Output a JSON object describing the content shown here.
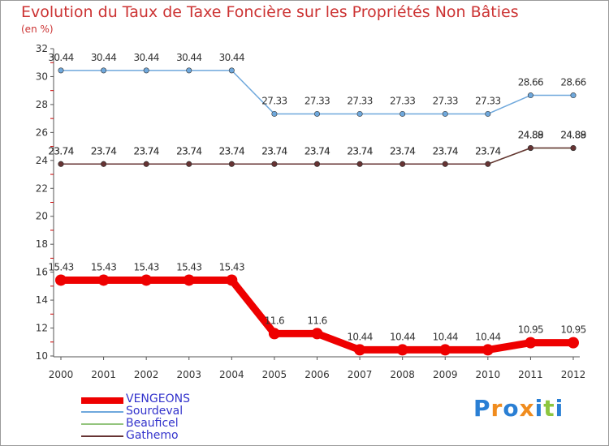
{
  "title": "Evolution du Taux de Taxe Foncière sur les Propriétés Non Bâties",
  "subtitle": "(en %)",
  "logo": {
    "text": "Proxiti",
    "letters": [
      "P",
      "r",
      "o",
      "x",
      "i",
      "t",
      "i"
    ],
    "colors": [
      "#2a7fd4",
      "#f08c1e",
      "#2a7fd4",
      "#f08c1e",
      "#2a7fd4",
      "#8cc63f",
      "#2a7fd4"
    ]
  },
  "chart_data": {
    "type": "line",
    "title": "Evolution du Taux de Taxe Foncière sur les Propriétés Non Bâties",
    "ylabel": "(en %)",
    "xlabel": "",
    "categories": [
      "2000",
      "2001",
      "2002",
      "2003",
      "2004",
      "2005",
      "2006",
      "2007",
      "2008",
      "2009",
      "2010",
      "2011",
      "2012"
    ],
    "ylim": [
      10,
      32
    ],
    "yticks": [
      10,
      12,
      14,
      16,
      18,
      20,
      22,
      24,
      26,
      28,
      30,
      32
    ],
    "grid": false,
    "series": [
      {
        "name": "VENGEONS",
        "color": "#ee0000",
        "values": [
          15.43,
          15.43,
          15.43,
          15.43,
          15.43,
          11.6,
          11.6,
          10.44,
          10.44,
          10.44,
          10.44,
          10.95,
          10.95
        ],
        "labels": [
          "15.43",
          "15.43",
          "15.43",
          "15.43",
          "15.43",
          "11.6",
          "11.6",
          "10.44",
          "10.44",
          "10.44",
          "10.44",
          "10.95",
          "10.95"
        ]
      },
      {
        "name": "Sourdeval",
        "color": "#6fa8dc",
        "values": [
          30.44,
          30.44,
          30.44,
          30.44,
          30.44,
          27.33,
          27.33,
          27.33,
          27.33,
          27.33,
          27.33,
          28.66,
          28.66
        ],
        "labels": [
          "30.44",
          "30.44",
          "30.44",
          "30.44",
          "30.44",
          "27.33",
          "27.33",
          "27.33",
          "27.33",
          "27.33",
          "27.33",
          "28.66",
          "28.66"
        ]
      },
      {
        "name": "Beauficel",
        "color": "#93c47d",
        "values": [
          23.74,
          23.74,
          23.74,
          23.74,
          23.74,
          23.74,
          23.74,
          23.74,
          23.74,
          23.74,
          23.74,
          24.88,
          24.88
        ],
        "labels": [
          "23.74",
          "23.74",
          "23.74",
          "23.74",
          "23.74",
          "23.74",
          "23.74",
          "23.74",
          "23.74",
          "23.74",
          "23.74",
          "24.88",
          "24.88"
        ]
      },
      {
        "name": "Gathemo",
        "color": "#663333",
        "values": [
          23.74,
          23.74,
          23.74,
          23.74,
          23.74,
          23.74,
          23.74,
          23.74,
          23.74,
          23.74,
          23.74,
          24.89,
          24.89
        ],
        "labels": [
          "23.74",
          "23.74",
          "23.74",
          "23.74",
          "23.74",
          "23.74",
          "23.74",
          "23.74",
          "23.74",
          "23.74",
          "23.74",
          "24.89",
          "24.89"
        ]
      }
    ]
  }
}
